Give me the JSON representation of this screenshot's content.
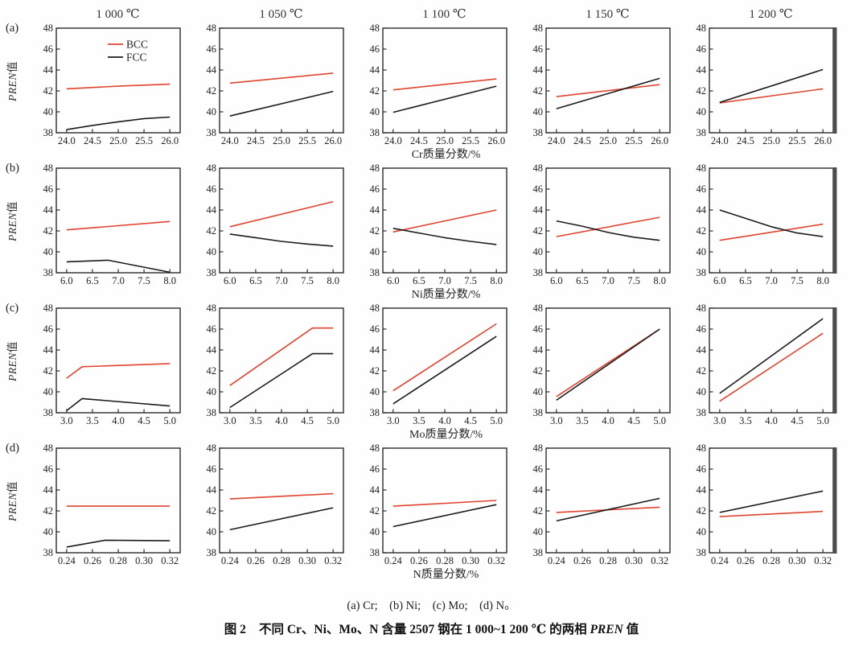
{
  "captions": {
    "subcaption": "(a) Cr;　(b) Ni;　(c) Mo;　(d) N。",
    "figure_title": {
      "label": "图 2",
      "before": "不同 Cr、Ni、Mo、N 含量 2507 钢在 1 000~1 200 ℃ 的两相 ",
      "italic": "PREN",
      "after": " 值"
    }
  },
  "chart_data": {
    "type": "line",
    "layout": "4 rows x 5 columns of panels",
    "column_headers": [
      "1 000 ℃",
      "1 050 ℃",
      "1 100 ℃",
      "1 150 ℃",
      "1 200 ℃"
    ],
    "ylabel": {
      "italic": "PREN",
      "suffix": "值"
    },
    "ylim": [
      38,
      48
    ],
    "yticks": [
      38,
      40,
      42,
      44,
      46,
      48
    ],
    "grid": false,
    "legend": {
      "position": "inside-top-right-of-first-panel",
      "entries": [
        {
          "name": "BCC",
          "color": "#e0452f"
        },
        {
          "name": "FCC",
          "color": "#1c1c1c"
        }
      ]
    },
    "rows": [
      {
        "label": "(a)",
        "element": "Cr",
        "xlabel": "Cr质量分数/%",
        "xlim": [
          23.8,
          26.2
        ],
        "xticks": [
          24.0,
          24.5,
          25.0,
          25.5,
          26.0
        ],
        "xtick_labels": [
          "24.0",
          "24.5",
          "25.0",
          "25.5",
          "26.0"
        ],
        "panels": [
          {
            "temperature": "1 000 ℃",
            "series": [
              {
                "name": "BCC",
                "x": [
                  24,
                  25,
                  26
                ],
                "y": [
                  42.2,
                  42.45,
                  42.65
                ]
              },
              {
                "name": "FCC",
                "x": [
                  24,
                  24.5,
                  25,
                  25.5,
                  26
                ],
                "y": [
                  38.3,
                  38.7,
                  39.05,
                  39.35,
                  39.5
                ]
              }
            ]
          },
          {
            "temperature": "1 050 ℃",
            "series": [
              {
                "name": "BCC",
                "x": [
                  24,
                  26
                ],
                "y": [
                  42.75,
                  43.7
                ]
              },
              {
                "name": "FCC",
                "x": [
                  24,
                  26
                ],
                "y": [
                  39.6,
                  41.95
                ]
              }
            ]
          },
          {
            "temperature": "1 100 ℃",
            "series": [
              {
                "name": "BCC",
                "x": [
                  24,
                  26
                ],
                "y": [
                  42.1,
                  43.15
                ]
              },
              {
                "name": "FCC",
                "x": [
                  24,
                  26
                ],
                "y": [
                  39.95,
                  42.45
                ]
              }
            ]
          },
          {
            "temperature": "1 150 ℃",
            "series": [
              {
                "name": "BCC",
                "x": [
                  24,
                  26
                ],
                "y": [
                  41.45,
                  42.6
                ]
              },
              {
                "name": "FCC",
                "x": [
                  24,
                  26
                ],
                "y": [
                  40.3,
                  43.2
                ]
              }
            ]
          },
          {
            "temperature": "1 200 ℃",
            "series": [
              {
                "name": "BCC",
                "x": [
                  24,
                  26
                ],
                "y": [
                  40.85,
                  42.2
                ]
              },
              {
                "name": "FCC",
                "x": [
                  24,
                  26
                ],
                "y": [
                  40.9,
                  44.05
                ]
              }
            ]
          }
        ]
      },
      {
        "label": "(b)",
        "element": "Ni",
        "xlabel": "Ni质量分数/%",
        "xlim": [
          5.8,
          8.2
        ],
        "xticks": [
          6.0,
          6.5,
          7.0,
          7.5,
          8.0
        ],
        "xtick_labels": [
          "6.0",
          "6.5",
          "7.0",
          "7.5",
          "8.0"
        ],
        "panels": [
          {
            "temperature": "1 000 ℃",
            "series": [
              {
                "name": "BCC",
                "x": [
                  6,
                  8
                ],
                "y": [
                  42.1,
                  42.9
                ]
              },
              {
                "name": "FCC",
                "x": [
                  6,
                  6.8,
                  8
                ],
                "y": [
                  39.05,
                  39.2,
                  38.05
                ]
              }
            ]
          },
          {
            "temperature": "1 050 ℃",
            "series": [
              {
                "name": "BCC",
                "x": [
                  6,
                  8
                ],
                "y": [
                  42.4,
                  44.8
                ]
              },
              {
                "name": "FCC",
                "x": [
                  6,
                  6.5,
                  7,
                  7.5,
                  8
                ],
                "y": [
                  41.7,
                  41.35,
                  41.0,
                  40.75,
                  40.55
                ]
              }
            ]
          },
          {
            "temperature": "1 100 ℃",
            "series": [
              {
                "name": "BCC",
                "x": [
                  6,
                  8
                ],
                "y": [
                  41.9,
                  44.0
                ]
              },
              {
                "name": "FCC",
                "x": [
                  6,
                  6.5,
                  7,
                  7.5,
                  8
                ],
                "y": [
                  42.25,
                  41.8,
                  41.35,
                  41.0,
                  40.7
                ]
              }
            ]
          },
          {
            "temperature": "1 150 ℃",
            "series": [
              {
                "name": "BCC",
                "x": [
                  6,
                  8
                ],
                "y": [
                  41.45,
                  43.3
                ]
              },
              {
                "name": "FCC",
                "x": [
                  6,
                  6.5,
                  7,
                  7.5,
                  8
                ],
                "y": [
                  42.95,
                  42.45,
                  41.85,
                  41.4,
                  41.1
                ]
              }
            ]
          },
          {
            "temperature": "1 200 ℃",
            "series": [
              {
                "name": "BCC",
                "x": [
                  6,
                  8
                ],
                "y": [
                  41.1,
                  42.65
                ]
              },
              {
                "name": "FCC",
                "x": [
                  6,
                  6.5,
                  7,
                  7.5,
                  8
                ],
                "y": [
                  44.0,
                  43.2,
                  42.4,
                  41.8,
                  41.45
                ]
              }
            ]
          }
        ]
      },
      {
        "label": "(c)",
        "element": "Mo",
        "xlabel": "Mo质量分数/%",
        "xlim": [
          2.8,
          5.2
        ],
        "xticks": [
          3.0,
          3.5,
          4.0,
          4.5,
          5.0
        ],
        "xtick_labels": [
          "3.0",
          "3.5",
          "4.0",
          "4.5",
          "5.0"
        ],
        "panels": [
          {
            "temperature": "1 000 ℃",
            "series": [
              {
                "name": "BCC",
                "x": [
                  3,
                  3.3,
                  5
                ],
                "y": [
                  41.3,
                  42.4,
                  42.7
                ]
              },
              {
                "name": "FCC",
                "x": [
                  3,
                  3.3,
                  5
                ],
                "y": [
                  38.2,
                  39.35,
                  38.65
                ]
              }
            ]
          },
          {
            "temperature": "1 050 ℃",
            "series": [
              {
                "name": "BCC",
                "x": [
                  3,
                  4.6,
                  5
                ],
                "y": [
                  40.6,
                  46.1,
                  46.1
                ]
              },
              {
                "name": "FCC",
                "x": [
                  3,
                  4.6,
                  5
                ],
                "y": [
                  38.5,
                  43.65,
                  43.65
                ]
              }
            ]
          },
          {
            "temperature": "1 100 ℃",
            "series": [
              {
                "name": "BCC",
                "x": [
                  3,
                  5
                ],
                "y": [
                  40.1,
                  46.5
                ]
              },
              {
                "name": "FCC",
                "x": [
                  3,
                  5
                ],
                "y": [
                  38.85,
                  45.3
                ]
              }
            ]
          },
          {
            "temperature": "1 150 ℃",
            "series": [
              {
                "name": "BCC",
                "x": [
                  3,
                  5
                ],
                "y": [
                  39.55,
                  46.0
                ]
              },
              {
                "name": "FCC",
                "x": [
                  3,
                  5
                ],
                "y": [
                  39.2,
                  46.0
                ]
              }
            ]
          },
          {
            "temperature": "1 200 ℃",
            "series": [
              {
                "name": "BCC",
                "x": [
                  3,
                  5
                ],
                "y": [
                  39.1,
                  45.6
                ]
              },
              {
                "name": "FCC",
                "x": [
                  3,
                  5
                ],
                "y": [
                  39.85,
                  47.0
                ]
              }
            ]
          }
        ]
      },
      {
        "label": "(d)",
        "element": "N",
        "xlabel": "N质量分数/%",
        "xlim": [
          0.232,
          0.328
        ],
        "xticks": [
          0.24,
          0.26,
          0.28,
          0.3,
          0.32
        ],
        "xtick_labels": [
          "0.24",
          "0.26",
          "0.28",
          "0.30",
          "0.32"
        ],
        "panels": [
          {
            "temperature": "1 000 ℃",
            "series": [
              {
                "name": "BCC",
                "x": [
                  0.24,
                  0.32
                ],
                "y": [
                  42.45,
                  42.45
                ]
              },
              {
                "name": "FCC",
                "x": [
                  0.24,
                  0.27,
                  0.32
                ],
                "y": [
                  38.55,
                  39.2,
                  39.15
                ]
              }
            ]
          },
          {
            "temperature": "1 050 ℃",
            "series": [
              {
                "name": "BCC",
                "x": [
                  0.24,
                  0.32
                ],
                "y": [
                  43.15,
                  43.65
                ]
              },
              {
                "name": "FCC",
                "x": [
                  0.24,
                  0.32
                ],
                "y": [
                  40.2,
                  42.3
                ]
              }
            ]
          },
          {
            "temperature": "1 100 ℃",
            "series": [
              {
                "name": "BCC",
                "x": [
                  0.24,
                  0.32
                ],
                "y": [
                  42.45,
                  43.0
                ]
              },
              {
                "name": "FCC",
                "x": [
                  0.24,
                  0.32
                ],
                "y": [
                  40.5,
                  42.6
                ]
              }
            ]
          },
          {
            "temperature": "1 150 ℃",
            "series": [
              {
                "name": "BCC",
                "x": [
                  0.24,
                  0.32
                ],
                "y": [
                  41.85,
                  42.35
                ]
              },
              {
                "name": "FCC",
                "x": [
                  0.24,
                  0.32
                ],
                "y": [
                  41.05,
                  43.2
                ]
              }
            ]
          },
          {
            "temperature": "1 200 ℃",
            "series": [
              {
                "name": "BCC",
                "x": [
                  0.24,
                  0.32
                ],
                "y": [
                  41.45,
                  41.95
                ]
              },
              {
                "name": "FCC",
                "x": [
                  0.24,
                  0.32
                ],
                "y": [
                  41.85,
                  43.9
                ]
              }
            ]
          }
        ]
      }
    ],
    "style": {
      "bcc_color": "#e0452f",
      "fcc_color": "#1c1c1c",
      "axis_color": "#2b2b2b",
      "last_column_right_border_color": "#4d4d4d"
    }
  }
}
